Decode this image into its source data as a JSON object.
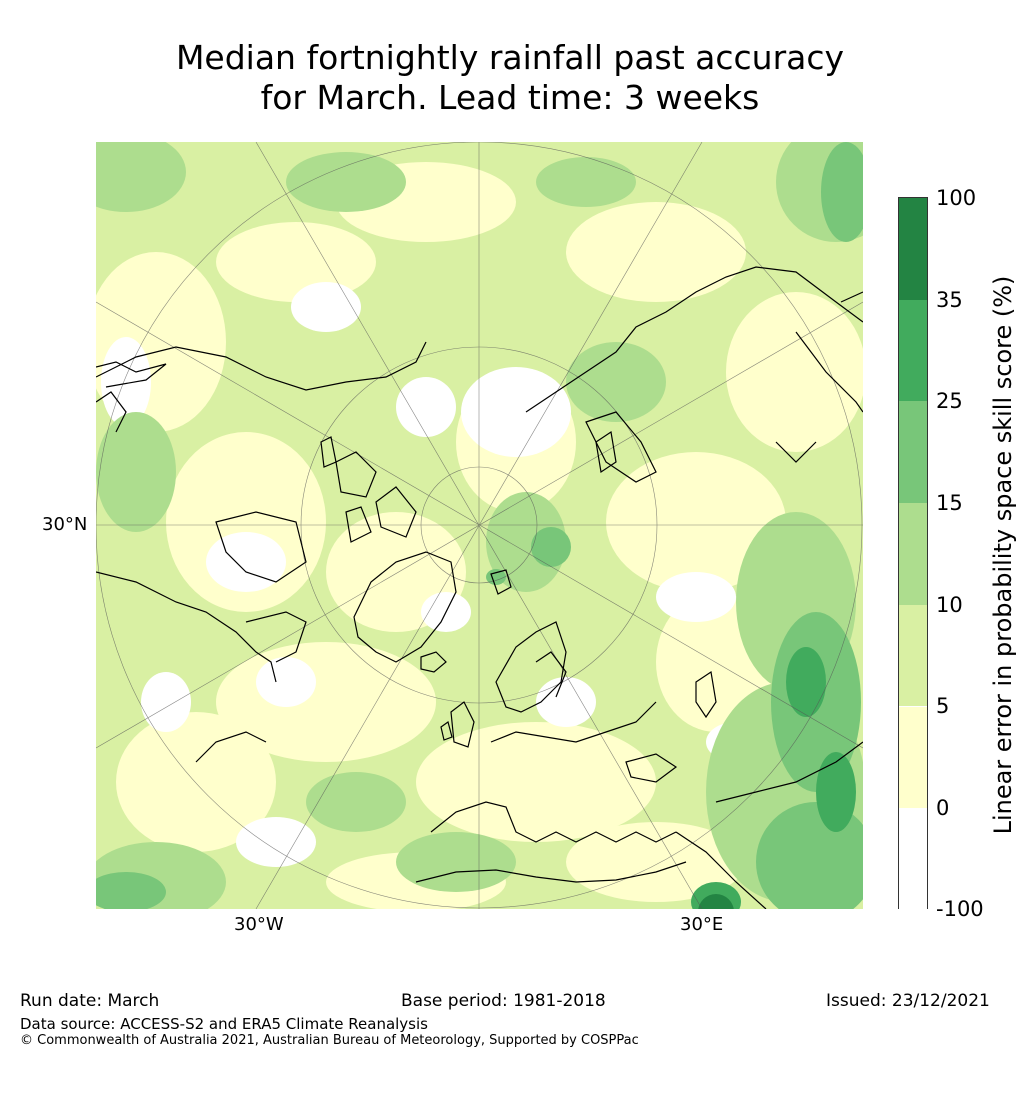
{
  "title": {
    "line1": "Median fortnightly rainfall past accuracy",
    "line2": "for March. Lead time: 3 weeks"
  },
  "map": {
    "projection": "north-polar-stereographic",
    "lat_label": "30°N",
    "lon_label_west": "30°W",
    "lon_label_east": "30°E"
  },
  "colorbar": {
    "title": "Linear error in probability space skill score (%)",
    "tick_labels": [
      "100",
      "35",
      "25",
      "15",
      "10",
      "5",
      "0",
      "-100"
    ],
    "bins": [
      {
        "range": "-100 to 0",
        "color": "#ffffff"
      },
      {
        "range": "0 to 5",
        "color": "#ffffcc"
      },
      {
        "range": "5 to 10",
        "color": "#d9f0a3"
      },
      {
        "range": "10 to 15",
        "color": "#addd8e"
      },
      {
        "range": "15 to 25",
        "color": "#78c679"
      },
      {
        "range": "25 to 35",
        "color": "#41ab5d"
      },
      {
        "range": "35 to 100",
        "color": "#238443"
      }
    ]
  },
  "footer": {
    "run_date": "Run date: March",
    "base_period": "Base period: 1981-2018",
    "issued": "Issued: 23/12/2021",
    "data_source": "Data source: ACCESS-S2 and ERA5 Climate Reanalysis",
    "copyright": "© Commonwealth of Australia 2021, Australian Bureau of Meteorology, Supported by COSPPac"
  }
}
